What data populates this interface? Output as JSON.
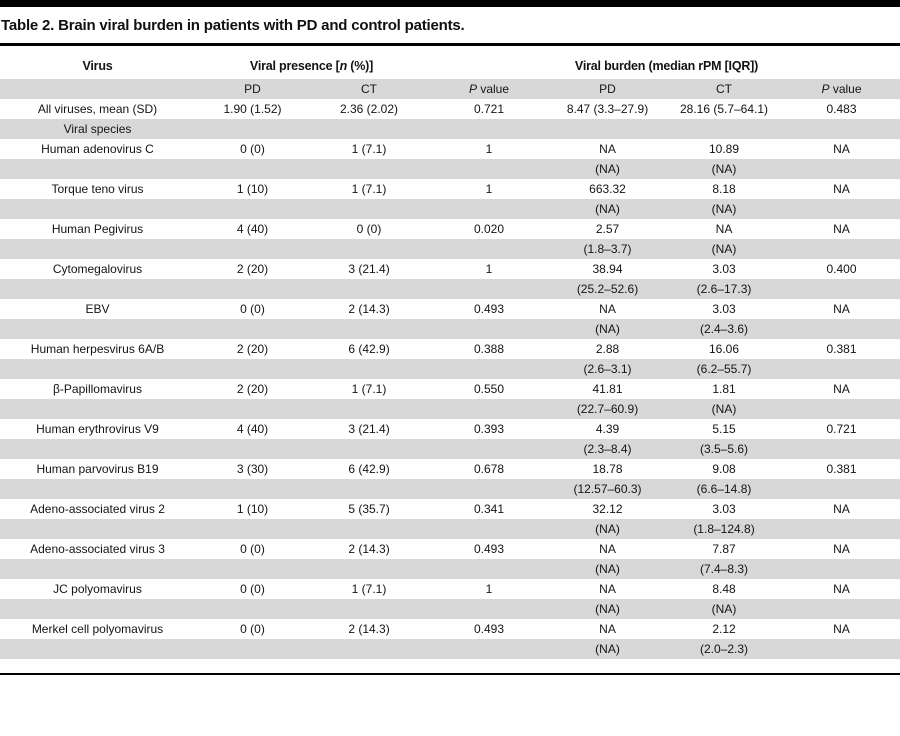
{
  "title": "Table 2. Brain viral burden in patients with PD and control patients.",
  "colors": {
    "row_shade": "#d8d8d8",
    "rule": "#000000",
    "top_bar": "#000000"
  },
  "table": {
    "group_headers": {
      "virus": "Virus",
      "presence_pre": "Viral presence [",
      "presence_italic": "n",
      "presence_post": " (%)]",
      "burden": "Viral burden (median rPM [IQR])"
    },
    "sub_headers": {
      "pd": "PD",
      "ct": "CT",
      "p_italic": "P",
      "p_rest": " value"
    },
    "rows": [
      [
        "All viruses, mean (SD)",
        "1.90 (1.52)",
        "2.36 (2.02)",
        "0.721",
        "8.47 (3.3–27.9)",
        "28.16 (5.7–64.1)",
        "0.483"
      ],
      [
        "Viral species",
        "",
        "",
        "",
        "",
        "",
        ""
      ],
      [
        "Human adenovirus C",
        "0 (0)",
        "1 (7.1)",
        "1",
        "NA",
        "10.89",
        "NA"
      ],
      [
        "",
        "",
        "",
        "",
        "(NA)",
        "(NA)",
        ""
      ],
      [
        "Torque teno virus",
        "1 (10)",
        "1 (7.1)",
        "1",
        "663.32",
        "8.18",
        "NA"
      ],
      [
        "",
        "",
        "",
        "",
        "(NA)",
        "(NA)",
        ""
      ],
      [
        "Human Pegivirus",
        "4 (40)",
        "0 (0)",
        "0.020",
        "2.57",
        "NA",
        "NA"
      ],
      [
        "",
        "",
        "",
        "",
        "(1.8–3.7)",
        "(NA)",
        ""
      ],
      [
        "Cytomegalovirus",
        "2 (20)",
        "3 (21.4)",
        "1",
        "38.94",
        "3.03",
        "0.400"
      ],
      [
        "",
        "",
        "",
        "",
        "(25.2–52.6)",
        "(2.6–17.3)",
        ""
      ],
      [
        "EBV",
        "0 (0)",
        "2 (14.3)",
        "0.493",
        "NA",
        "3.03",
        "NA"
      ],
      [
        "",
        "",
        "",
        "",
        "(NA)",
        "(2.4–3.6)",
        ""
      ],
      [
        "Human herpesvirus 6A/B",
        "2 (20)",
        "6 (42.9)",
        "0.388",
        "2.88",
        "16.06",
        "0.381"
      ],
      [
        "",
        "",
        "",
        "",
        "(2.6–3.1)",
        "(6.2–55.7)",
        ""
      ],
      [
        "β-Papillomavirus",
        "2 (20)",
        "1 (7.1)",
        "0.550",
        "41.81",
        "1.81",
        "NA"
      ],
      [
        "",
        "",
        "",
        "",
        "(22.7–60.9)",
        "(NA)",
        ""
      ],
      [
        "Human erythrovirus V9",
        "4 (40)",
        "3 (21.4)",
        "0.393",
        "4.39",
        "5.15",
        "0.721"
      ],
      [
        "",
        "",
        "",
        "",
        "(2.3–8.4)",
        "(3.5–5.6)",
        ""
      ],
      [
        "Human parvovirus B19",
        "3 (30)",
        "6 (42.9)",
        "0.678",
        "18.78",
        "9.08",
        "0.381"
      ],
      [
        "",
        "",
        "",
        "",
        "(12.57–60.3)",
        "(6.6–14.8)",
        ""
      ],
      [
        "Adeno-associated virus 2",
        "1 (10)",
        "5 (35.7)",
        "0.341",
        "32.12",
        "3.03",
        "NA"
      ],
      [
        "",
        "",
        "",
        "",
        "(NA)",
        "(1.8–124.8)",
        ""
      ],
      [
        "Adeno-associated virus 3",
        "0 (0)",
        "2 (14.3)",
        "0.493",
        "NA",
        "7.87",
        "NA"
      ],
      [
        "",
        "",
        "",
        "",
        "(NA)",
        "(7.4–8.3)",
        ""
      ],
      [
        "JC polyomavirus",
        "0 (0)",
        "1 (7.1)",
        "1",
        "NA",
        "8.48",
        "NA"
      ],
      [
        "",
        "",
        "",
        "",
        "(NA)",
        "(NA)",
        ""
      ],
      [
        "Merkel cell polyomavirus",
        "0 (0)",
        "2 (14.3)",
        "0.493",
        "NA",
        "2.12",
        "NA"
      ],
      [
        "",
        "",
        "",
        "",
        "(NA)",
        "(2.0–2.3)",
        ""
      ]
    ]
  }
}
